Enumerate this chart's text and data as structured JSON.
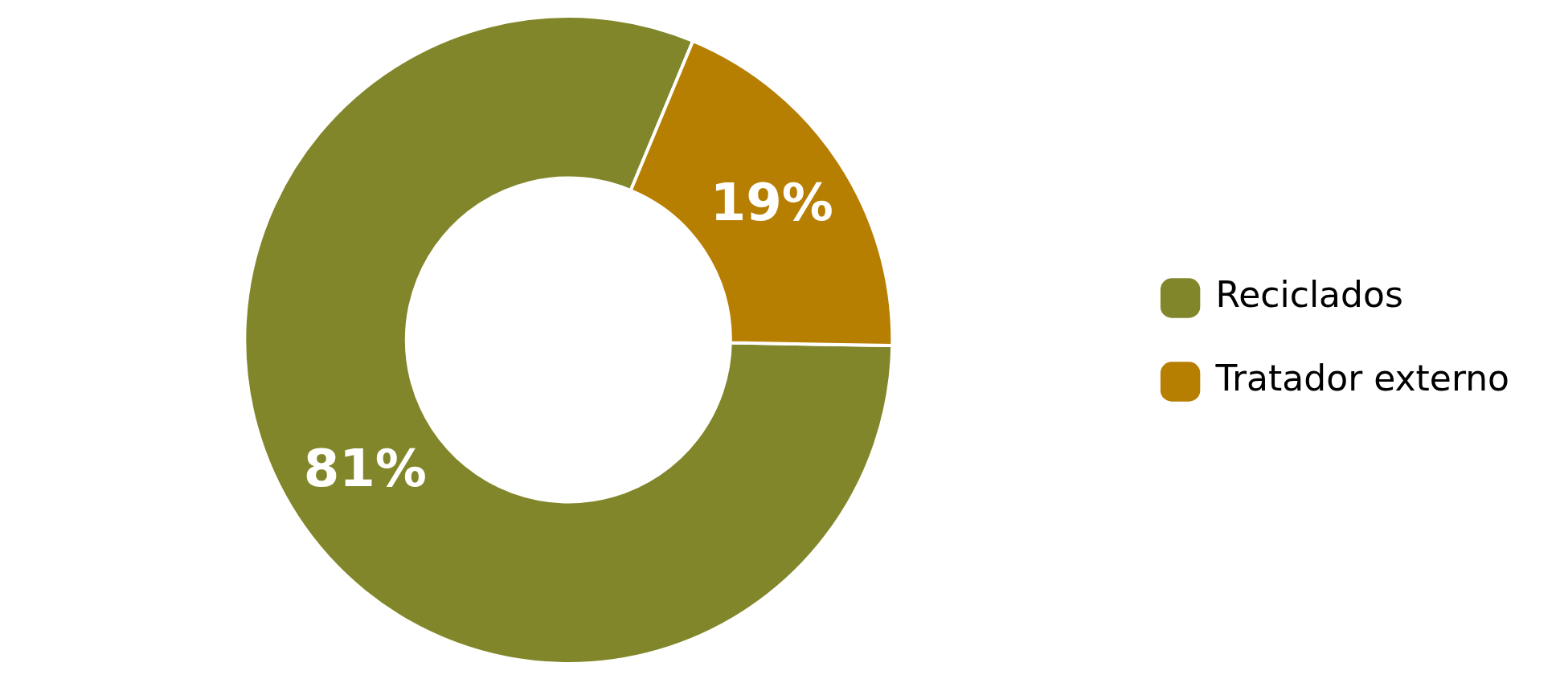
{
  "chart_data": {
    "type": "donut",
    "categories": [
      "Reciclados",
      "Tratador externo"
    ],
    "values": [
      81,
      19
    ],
    "colors": [
      "#82862a",
      "#b77f02"
    ],
    "value_labels": [
      "81%",
      "19%"
    ],
    "legend": "right"
  }
}
